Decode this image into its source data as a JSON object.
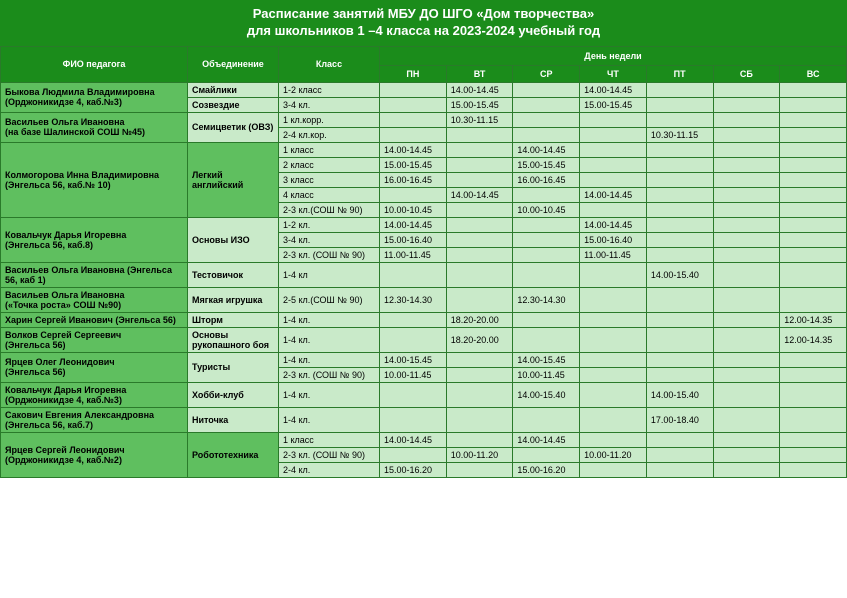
{
  "title1": "Расписание занятий МБУ ДО ШГО «Дом творчества»",
  "title2": "для школьников 1 –4 класса на 2023-2024 учебный год",
  "headers": {
    "teacher": "ФИО педагога",
    "association": "Объединение",
    "klass": "Класс",
    "weekday": "День недели",
    "days": [
      "ПН",
      "ВТ",
      "СР",
      "ЧТ",
      "ПТ",
      "СБ",
      "ВС"
    ]
  },
  "colors": {
    "dark": "#1b8c1b",
    "mid": "#5fbf5f",
    "light": "#c9eac9",
    "border": "#2a7a2a"
  },
  "groups": [
    {
      "teacher": "Быкова Людмила Владимировна\n(Орджоникидзе 4, каб.№3)",
      "teacher_bg": "mid",
      "assoc_rows": [
        {
          "assoc": "Смайлики",
          "assoc_bg": "light",
          "klass_rows": [
            {
              "klass": "1-2  класс",
              "bg": "light",
              "days": [
                "",
                "14.00-14.45",
                "",
                "14.00-14.45",
                "",
                "",
                ""
              ]
            }
          ]
        },
        {
          "assoc": "Созвездие",
          "assoc_bg": "light",
          "klass_rows": [
            {
              "klass": "3-4 кл.",
              "bg": "light",
              "days": [
                "",
                "15.00-15.45",
                "",
                "15.00-15.45",
                "",
                "",
                ""
              ]
            }
          ]
        }
      ]
    },
    {
      "teacher": "Васильев Ольга Ивановна\n(на базе Шалинской СОШ №45)",
      "teacher_bg": "mid",
      "assoc_rows": [
        {
          "assoc": "Семицветик (ОВЗ)",
          "assoc_bg": "light",
          "klass_rows": [
            {
              "klass": "1 кл.корр.",
              "bg": "light",
              "days": [
                "",
                "10.30-11.15",
                "",
                "",
                "",
                "",
                ""
              ]
            },
            {
              "klass": "2-4 кл.кор.",
              "bg": "light",
              "days": [
                "",
                "",
                "",
                "",
                "10.30-11.15",
                "",
                ""
              ]
            }
          ]
        }
      ]
    },
    {
      "teacher": "Колмогорова Инна Владимировна\n(Энгельса 56, каб.№ 10)",
      "teacher_bg": "mid",
      "assoc_rows": [
        {
          "assoc": "Легкий английский",
          "assoc_bg": "mid",
          "klass_rows": [
            {
              "klass": "1 класс",
              "bg": "light",
              "days": [
                "14.00-14.45",
                "",
                "14.00-14.45",
                "",
                "",
                "",
                ""
              ]
            },
            {
              "klass": "2 класс",
              "bg": "light",
              "days": [
                "15.00-15.45",
                "",
                "15.00-15.45",
                "",
                "",
                "",
                ""
              ]
            },
            {
              "klass": "3 класс",
              "bg": "light",
              "days": [
                "16.00-16.45",
                "",
                "16.00-16.45",
                "",
                "",
                "",
                ""
              ]
            },
            {
              "klass": "4 класс",
              "bg": "light",
              "days": [
                "",
                "14.00-14.45",
                "",
                "14.00-14.45",
                "",
                "",
                ""
              ]
            },
            {
              "klass": "2-3 кл.(СОШ № 90)",
              "bg": "light",
              "days": [
                "10.00-10.45",
                "",
                "10.00-10.45",
                "",
                "",
                "",
                ""
              ]
            }
          ]
        }
      ]
    },
    {
      "teacher": "Ковальчук Дарья Игоревна\n(Энгельса 56, каб.8)",
      "teacher_bg": "mid",
      "assoc_rows": [
        {
          "assoc": "Основы ИЗО",
          "assoc_bg": "light",
          "klass_rows": [
            {
              "klass": "1-2 кл.",
              "bg": "light",
              "days": [
                "14.00-14.45",
                "",
                "",
                "14.00-14.45",
                "",
                "",
                ""
              ]
            },
            {
              "klass": "3-4 кл.",
              "bg": "light",
              "days": [
                "15.00-16.40",
                "",
                "",
                "15.00-16.40",
                "",
                "",
                ""
              ]
            },
            {
              "klass": "2-3 кл. (СОШ № 90)",
              "bg": "light",
              "days": [
                "11.00-11.45",
                "",
                "",
                "11.00-11.45",
                "",
                "",
                ""
              ]
            }
          ]
        }
      ]
    },
    {
      "teacher": "Васильев Ольга Ивановна (Энгельса 56, каб 1)",
      "teacher_bg": "mid",
      "assoc_rows": [
        {
          "assoc": "Тестовичок",
          "assoc_bg": "light",
          "klass_rows": [
            {
              "klass": "1-4 кл",
              "bg": "light",
              "days": [
                "",
                "",
                "",
                "",
                "14.00-15.40",
                "",
                ""
              ]
            }
          ]
        }
      ]
    },
    {
      "teacher": "Васильев Ольга Ивановна\n («Точка роста» СОШ №90)",
      "teacher_bg": "mid",
      "assoc_rows": [
        {
          "assoc": "Мягкая игрушка",
          "assoc_bg": "light",
          "klass_rows": [
            {
              "klass": "2-5 кл.(СОШ № 90)",
              "bg": "light",
              "days": [
                "12.30-14.30",
                "",
                "12.30-14.30",
                "",
                "",
                "",
                ""
              ]
            }
          ]
        }
      ]
    },
    {
      "teacher": "Харин Сергей Иванович (Энгельса 56)",
      "teacher_bg": "mid",
      "assoc_rows": [
        {
          "assoc": "Шторм",
          "assoc_bg": "light",
          "klass_rows": [
            {
              "klass": "1-4 кл.",
              "bg": "light",
              "days": [
                "",
                "18.20-20.00",
                "",
                "",
                "",
                "",
                "12.00-14.35"
              ]
            }
          ]
        }
      ]
    },
    {
      "teacher": "Волков Сергей Сергеевич\n(Энгельса 56)",
      "teacher_bg": "mid",
      "assoc_rows": [
        {
          "assoc": "Основы рукопашного боя",
          "assoc_bg": "light",
          "klass_rows": [
            {
              "klass": "1-4 кл.",
              "bg": "light",
              "days": [
                "",
                "18.20-20.00",
                "",
                "",
                "",
                "",
                "12.00-14.35"
              ]
            }
          ]
        }
      ]
    },
    {
      "teacher": "Ярцев Олег Леонидович\n(Энгельса 56)",
      "teacher_bg": "mid",
      "assoc_rows": [
        {
          "assoc": "Туристы",
          "assoc_bg": "light",
          "klass_rows": [
            {
              "klass": "1-4 кл.",
              "bg": "light",
              "days": [
                "14.00-15.45",
                "",
                "14.00-15.45",
                "",
                "",
                "",
                ""
              ]
            },
            {
              "klass": "2-3 кл. (СОШ № 90)",
              "bg": "light",
              "days": [
                "10.00-11.45",
                "",
                "10.00-11.45",
                "",
                "",
                "",
                ""
              ]
            }
          ]
        }
      ]
    },
    {
      "teacher": "Ковальчук Дарья Игоревна\n(Орджоникидзе 4, каб.№3)",
      "teacher_bg": "mid",
      "assoc_rows": [
        {
          "assoc": "Хобби-клуб",
          "assoc_bg": "light",
          "klass_rows": [
            {
              "klass": "1-4 кл.",
              "bg": "light",
              "days": [
                "",
                "",
                "14.00-15.40",
                "",
                "14.00-15.40",
                "",
                ""
              ]
            }
          ]
        }
      ]
    },
    {
      "teacher": "Сакович Евгения Александровна\n(Энгельса 56, каб.7)",
      "teacher_bg": "mid",
      "assoc_rows": [
        {
          "assoc": "Ниточка",
          "assoc_bg": "light",
          "klass_rows": [
            {
              "klass": "1-4 кл.",
              "bg": "light",
              "days": [
                "",
                "",
                "",
                "",
                "17.00-18.40",
                "",
                ""
              ]
            }
          ]
        }
      ]
    },
    {
      "teacher": "Ярцев Сергей Леонидович\n(Орджоникидзе 4, каб.№2)",
      "teacher_bg": "mid",
      "assoc_rows": [
        {
          "assoc": "Робототехника",
          "assoc_bg": "mid",
          "klass_rows": [
            {
              "klass": "1 класс",
              "bg": "light",
              "days": [
                "14.00-14.45",
                "",
                "14.00-14.45",
                "",
                "",
                "",
                ""
              ]
            },
            {
              "klass": "2-3 кл. (СОШ № 90)",
              "bg": "light",
              "days": [
                "",
                "10.00-11.20",
                "",
                "10.00-11.20",
                "",
                "",
                ""
              ]
            },
            {
              "klass": "2-4 кл.",
              "bg": "light",
              "days": [
                "15.00-16.20",
                "",
                "15.00-16.20",
                "",
                "",
                "",
                ""
              ]
            }
          ]
        }
      ]
    }
  ]
}
